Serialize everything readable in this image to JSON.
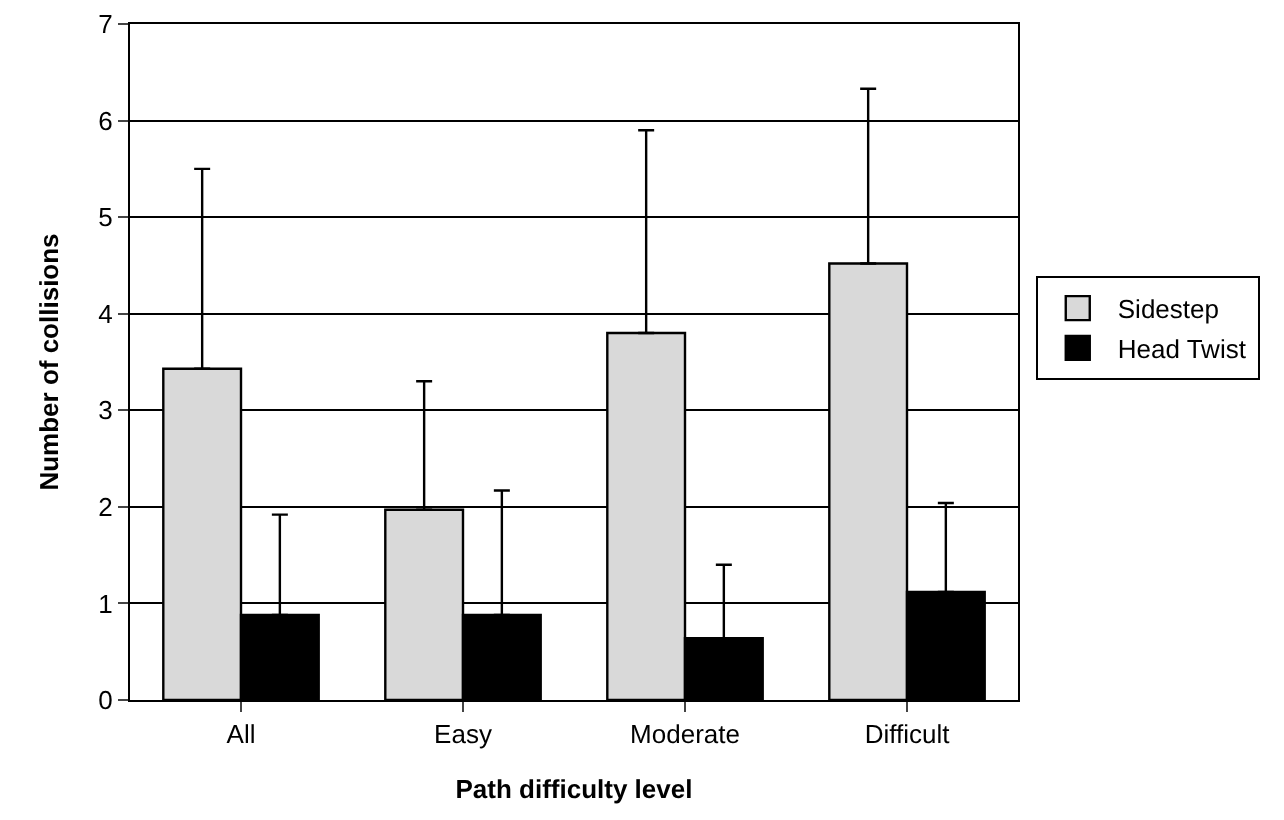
{
  "chart_data": {
    "type": "bar",
    "xlabel": "Path difficulty level",
    "ylabel": "Number of collisions",
    "categories": [
      "All",
      "Easy",
      "Moderate",
      "Difficult"
    ],
    "series": [
      {
        "name": "Sidestep",
        "color": "#d9d9d9",
        "values": [
          3.43,
          1.97,
          3.8,
          4.52
        ],
        "errors": [
          [
            3.43,
            5.5
          ],
          [
            1.97,
            3.3
          ],
          [
            3.8,
            5.9
          ],
          [
            4.52,
            6.33
          ]
        ]
      },
      {
        "name": "Head Twist",
        "color": "#000000",
        "values": [
          0.88,
          0.88,
          0.64,
          1.12
        ],
        "errors": [
          [
            0.88,
            1.92
          ],
          [
            0.88,
            2.17
          ],
          [
            0.64,
            1.4
          ],
          [
            1.12,
            2.04
          ]
        ]
      }
    ],
    "ylim": [
      0,
      7
    ],
    "yticks": [
      0,
      1,
      2,
      3,
      4,
      5,
      6,
      7
    ],
    "grid": "y",
    "legend": "right"
  }
}
